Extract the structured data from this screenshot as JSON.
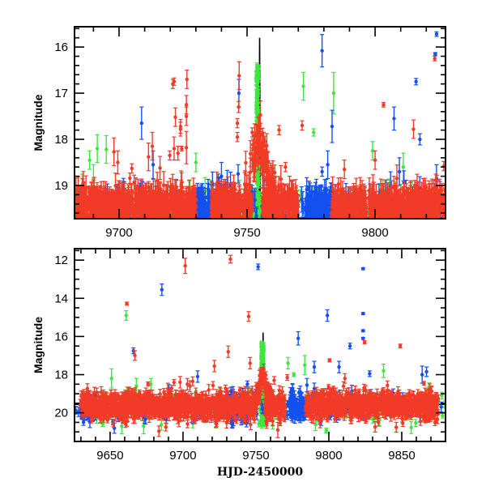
{
  "chart_data": [
    {
      "type": "scatter",
      "panel": "top",
      "title": "",
      "xlabel": "",
      "ylabel": "Magnitude",
      "xlim": [
        9682.6,
        9827.5
      ],
      "ylim": [
        15.56,
        19.72
      ],
      "y_inverted": true,
      "x_ticks_major": [
        9700,
        9750,
        9800
      ],
      "x_tick_labels": [
        "9700",
        "9750",
        "9800"
      ],
      "x_ticks_minor_step": 10,
      "y_ticks_major": [
        16,
        17,
        18,
        19
      ],
      "y_tick_labels": [
        "16",
        "17",
        "18",
        "19"
      ],
      "y_ticks_minor_step": 0.2,
      "grid": false,
      "legend": "none",
      "model_line": {
        "color": "#000000",
        "baseline": 19.72,
        "peak_x": 9754.9,
        "peak_y": 15.8,
        "note": "black model light curve, spike at peak, near baseline elsewhere"
      },
      "series": [
        {
          "name": "red",
          "color": "#F23B27",
          "baseline_mag": 19.45,
          "scatter_sd": 0.2,
          "dense_segments": [
            [
              9683,
              9730
            ],
            [
              9736,
              9752
            ],
            [
              9756,
              9770
            ],
            [
              9783,
              9828
            ]
          ],
          "outliers": [
            {
              "x": 9721.0,
              "y": 16.8,
              "err": 0.1
            },
            {
              "x": 9721.5,
              "y": 16.75,
              "err": 0.08
            },
            {
              "x": 9726.5,
              "y": 16.7,
              "err": 0.2
            },
            {
              "x": 9726.3,
              "y": 17.25,
              "err": 0.2
            },
            {
              "x": 9726.3,
              "y": 17.5,
              "err": 0.2
            },
            {
              "x": 9722.0,
              "y": 17.52,
              "err": 0.2
            },
            {
              "x": 9724.0,
              "y": 17.72,
              "err": 0.15
            },
            {
              "x": 9724.0,
              "y": 17.78,
              "err": 0.15
            },
            {
              "x": 9724.5,
              "y": 18.2,
              "err": 0.05
            },
            {
              "x": 9726.3,
              "y": 18.18,
              "err": 0.35
            },
            {
              "x": 9721.5,
              "y": 18.2,
              "err": 0.25
            },
            {
              "x": 9719.8,
              "y": 18.35,
              "err": 0.1
            },
            {
              "x": 9723.0,
              "y": 18.3,
              "err": 0.15
            },
            {
              "x": 9698.0,
              "y": 18.27,
              "err": 0.3
            },
            {
              "x": 9713.0,
              "y": 18.15,
              "err": 0.3
            },
            {
              "x": 9699.5,
              "y": 18.5,
              "err": 0.25
            },
            {
              "x": 9711.5,
              "y": 18.38,
              "err": 0.3
            },
            {
              "x": 9705.0,
              "y": 18.63,
              "err": 0.1
            },
            {
              "x": 9716.0,
              "y": 18.62,
              "err": 0.25
            },
            {
              "x": 9746.9,
              "y": 16.62,
              "err": 0.3
            },
            {
              "x": 9746.7,
              "y": 17.3,
              "err": 0.12
            },
            {
              "x": 9746.2,
              "y": 17.95,
              "err": 0.1
            },
            {
              "x": 9746.2,
              "y": 17.65,
              "err": 0.1
            },
            {
              "x": 9752.0,
              "y": 17.85,
              "err": 0.1
            },
            {
              "x": 9757.0,
              "y": 18.05,
              "err": 0.12
            },
            {
              "x": 9762.5,
              "y": 17.8,
              "err": 0.1
            },
            {
              "x": 9771.5,
              "y": 17.7,
              "err": 0.1
            },
            {
              "x": 9765.0,
              "y": 18.6,
              "err": 0.1
            },
            {
              "x": 9803.3,
              "y": 17.25,
              "err": 0.05
            },
            {
              "x": 9815.0,
              "y": 17.78,
              "err": 0.2
            },
            {
              "x": 9823.3,
              "y": 16.25,
              "err": 0.05
            },
            {
              "x": 9826.8,
              "y": 18.58,
              "err": 0.1
            },
            {
              "x": 9788.0,
              "y": 18.65,
              "err": 0.2
            },
            {
              "x": 9800.0,
              "y": 18.45,
              "err": 0.2
            }
          ]
        },
        {
          "name": "blue",
          "color": "#1450EE",
          "baseline_mag": 19.5,
          "scatter_sd": 0.2,
          "dense_segments": [
            [
              9683,
              9686
            ],
            [
              9699,
              9702
            ],
            [
              9708,
              9710
            ],
            [
              9730,
              9745
            ],
            [
              9773,
              9784
            ]
          ],
          "outliers": [
            {
              "x": 9708.8,
              "y": 17.65,
              "err": 0.35
            },
            {
              "x": 9746.8,
              "y": 17.0,
              "err": 0.3
            },
            {
              "x": 9779.3,
              "y": 16.08,
              "err": 0.35
            },
            {
              "x": 9783.2,
              "y": 17.72,
              "err": 0.35
            },
            {
              "x": 9781.5,
              "y": 18.55,
              "err": 0.3
            },
            {
              "x": 9779.3,
              "y": 18.7,
              "err": 0.1
            },
            {
              "x": 9807.4,
              "y": 17.55,
              "err": 0.25
            },
            {
              "x": 9816.0,
              "y": 16.75,
              "err": 0.07
            },
            {
              "x": 9817.5,
              "y": 18.0,
              "err": 0.12
            },
            {
              "x": 9824.0,
              "y": 15.72,
              "err": 0.05
            },
            {
              "x": 9823.5,
              "y": 16.15,
              "err": 0.03
            },
            {
              "x": 9824.0,
              "y": 18.85,
              "err": 0.3
            },
            {
              "x": 9809.5,
              "y": 18.7,
              "err": 0.3
            },
            {
              "x": 9746.5,
              "y": 18.75,
              "err": 0.2
            },
            {
              "x": 9713.3,
              "y": 18.55,
              "err": 0.3
            },
            {
              "x": 9740.0,
              "y": 18.8,
              "err": 0.3
            }
          ]
        },
        {
          "name": "green",
          "color": "#3CE83C",
          "baseline_mag": 19.55,
          "scatter_sd": 0.2,
          "dense_segments": [
            [
              9752.5,
              9755.5
            ]
          ],
          "peak": {
            "x_range": [
              9753.6,
              9754.6
            ],
            "y_top": 16.42
          },
          "outliers": [
            {
              "x": 9688.5,
              "y": 18.45,
              "err": 0.2
            },
            {
              "x": 9691.5,
              "y": 18.2,
              "err": 0.3
            },
            {
              "x": 9695.0,
              "y": 18.22,
              "err": 0.3
            },
            {
              "x": 9772.0,
              "y": 16.85,
              "err": 0.3
            },
            {
              "x": 9783.8,
              "y": 17.0,
              "err": 0.45
            },
            {
              "x": 9776.0,
              "y": 17.85,
              "err": 0.08
            },
            {
              "x": 9799.0,
              "y": 18.25,
              "err": 0.2
            },
            {
              "x": 9811.0,
              "y": 18.6,
              "err": 0.3
            },
            {
              "x": 9730.0,
              "y": 18.5,
              "err": 0.2
            },
            {
              "x": 9690.0,
              "y": 18.85,
              "err": 0.3
            }
          ]
        }
      ]
    },
    {
      "type": "scatter",
      "panel": "bottom",
      "title": "",
      "xlabel": "HJD-2450000",
      "ylabel": "Magnitude",
      "xlim": [
        9625.6,
        9880.0
      ],
      "ylim": [
        11.4,
        21.5
      ],
      "y_inverted": true,
      "x_ticks_major": [
        9650,
        9700,
        9750,
        9800,
        9850
      ],
      "x_tick_labels": [
        "9650",
        "9700",
        "9750",
        "9800",
        "9850"
      ],
      "x_ticks_minor_step": 10,
      "y_ticks_major": [
        12,
        14,
        16,
        18,
        20
      ],
      "y_tick_labels": [
        "12",
        "14",
        "16",
        "18",
        "20"
      ],
      "y_ticks_minor_step": 0.5,
      "grid": false,
      "legend": "none",
      "model_line": {
        "color": "#000000",
        "baseline": 19.6,
        "peak_x": 9754.9,
        "peak_y": 15.8
      },
      "series": [
        {
          "name": "red",
          "color": "#F23B27",
          "baseline_mag": 19.6,
          "scatter_sd": 0.35,
          "dense_segments": [
            [
              9630,
              9750
            ],
            [
              9756,
              9770
            ],
            [
              9784,
              9875
            ]
          ],
          "outliers": [
            {
              "x": 9661.5,
              "y": 14.28,
              "err": 0.08
            },
            {
              "x": 9701.5,
              "y": 12.3,
              "err": 0.4
            },
            {
              "x": 9732.5,
              "y": 11.95,
              "err": 0.2
            },
            {
              "x": 9745.0,
              "y": 14.95,
              "err": 0.25
            },
            {
              "x": 9667.0,
              "y": 17.0,
              "err": 0.25
            },
            {
              "x": 9800.5,
              "y": 17.25,
              "err": 0.08
            },
            {
              "x": 9824.5,
              "y": 16.3,
              "err": 0.08
            },
            {
              "x": 9849.0,
              "y": 16.5,
              "err": 0.1
            },
            {
              "x": 9721.5,
              "y": 17.55,
              "err": 0.3
            },
            {
              "x": 9731.0,
              "y": 16.8,
              "err": 0.3
            },
            {
              "x": 9746.0,
              "y": 17.4,
              "err": 0.3
            },
            {
              "x": 9762.5,
              "y": 18.3,
              "err": 0.2
            },
            {
              "x": 9771.5,
              "y": 18.15,
              "err": 0.15
            },
            {
              "x": 9811.0,
              "y": 18.2,
              "err": 0.25
            },
            {
              "x": 9698.0,
              "y": 18.4,
              "err": 0.3
            },
            {
              "x": 9703.0,
              "y": 18.5,
              "err": 0.3
            },
            {
              "x": 9765.0,
              "y": 20.9,
              "err": 0.4
            }
          ]
        },
        {
          "name": "blue",
          "color": "#1450EE",
          "baseline_mag": 19.7,
          "scatter_sd": 0.35,
          "dense_segments": [
            [
              9630,
              9640
            ],
            [
              9730,
              9745
            ],
            [
              9773,
              9784
            ]
          ],
          "outliers": [
            {
              "x": 9685.5,
              "y": 13.55,
              "err": 0.3
            },
            {
              "x": 9751.5,
              "y": 12.35,
              "err": 0.15
            },
            {
              "x": 9823.5,
              "y": 12.45,
              "err": 0.05
            },
            {
              "x": 9799.0,
              "y": 14.9,
              "err": 0.3
            },
            {
              "x": 9823.5,
              "y": 14.8,
              "err": 0.05
            },
            {
              "x": 9823.5,
              "y": 15.7,
              "err": 0.05
            },
            {
              "x": 9823.5,
              "y": 16.1,
              "err": 0.05
            },
            {
              "x": 9814.5,
              "y": 16.5,
              "err": 0.15
            },
            {
              "x": 9666.0,
              "y": 16.75,
              "err": 0.15
            },
            {
              "x": 9779.0,
              "y": 16.1,
              "err": 0.35
            },
            {
              "x": 9790.0,
              "y": 17.6,
              "err": 0.3
            },
            {
              "x": 9710.0,
              "y": 18.1,
              "err": 0.3
            },
            {
              "x": 9807.0,
              "y": 17.6,
              "err": 0.3
            },
            {
              "x": 9828.0,
              "y": 17.95,
              "err": 0.15
            },
            {
              "x": 9864.0,
              "y": 18.0,
              "err": 0.45
            },
            {
              "x": 9867.0,
              "y": 17.85,
              "err": 0.25
            },
            {
              "x": 9785.0,
              "y": 18.55,
              "err": 0.35
            }
          ]
        },
        {
          "name": "green",
          "color": "#3CE83C",
          "baseline_mag": 19.8,
          "scatter_sd": 0.45,
          "dense_segments": [
            [
              9752.5,
              9755.5
            ]
          ],
          "peak": {
            "x_range": [
              9753.6,
              9755.2
            ],
            "y_top": 16.3
          },
          "outliers": [
            {
              "x": 9661.0,
              "y": 14.9,
              "err": 0.25
            },
            {
              "x": 9772.0,
              "y": 17.4,
              "err": 0.3
            },
            {
              "x": 9783.5,
              "y": 17.5,
              "err": 0.5
            },
            {
              "x": 9776.0,
              "y": 18.0,
              "err": 0.1
            },
            {
              "x": 9837.5,
              "y": 17.8,
              "err": 0.35
            },
            {
              "x": 9651.0,
              "y": 18.2,
              "err": 0.5
            },
            {
              "x": 9668.0,
              "y": 18.6,
              "err": 0.4
            },
            {
              "x": 9658.0,
              "y": 20.7,
              "err": 0.4
            },
            {
              "x": 9673.0,
              "y": 20.7,
              "err": 0.4
            },
            {
              "x": 9678.0,
              "y": 18.5,
              "err": 0.3
            }
          ]
        }
      ]
    }
  ]
}
